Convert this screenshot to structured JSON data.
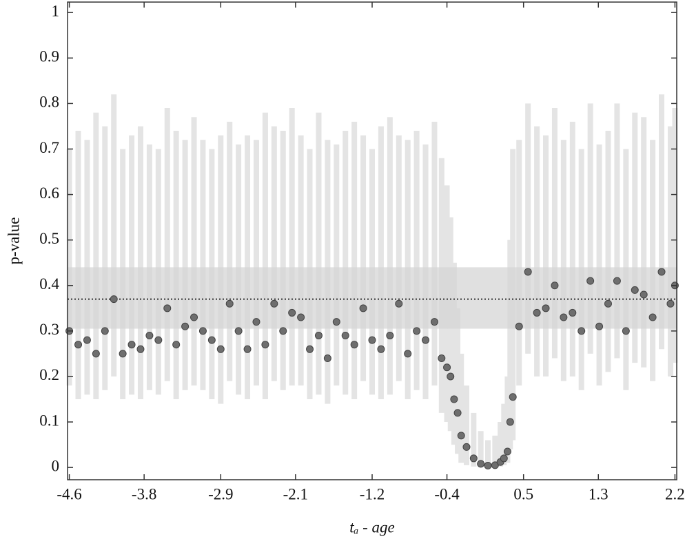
{
  "chart_data": {
    "type": "scatter",
    "xlabel": "tₐ  - age",
    "ylabel": "p-value",
    "xlim": [
      -4.62,
      2.22
    ],
    "ylim": [
      -0.027,
      1.023
    ],
    "xticks": [
      -4.6,
      {
        "value": -3.76,
        "label": "-3.8"
      },
      -2.9,
      {
        "value": -2.06,
        "label": "-2.1"
      },
      -1.2,
      {
        "value": -0.36,
        "label": "-0.4"
      },
      0.5,
      {
        "value": 1.34,
        "label": "1.3"
      },
      2.2
    ],
    "yticks": [
      0,
      0.1,
      0.2,
      0.3,
      0.4,
      0.5,
      0.6,
      0.7,
      0.8,
      0.9,
      1
    ],
    "band": [
      0.305,
      0.44
    ],
    "reference_line": 0.37,
    "color": "#6e6e6e",
    "error_color": "#e4e4e4",
    "band_color": "#d6d6d6",
    "series": [
      {
        "x": [
          -4.6,
          -4.5,
          -4.4,
          -4.3,
          -4.2,
          -4.1,
          -4.0,
          -3.9,
          -3.8,
          -3.7,
          -3.6,
          -3.5,
          -3.4,
          -3.3,
          -3.2,
          -3.1,
          -3.0,
          -2.9,
          -2.8,
          -2.7,
          -2.6,
          -2.5,
          -2.4,
          -2.3,
          -2.2,
          -2.1,
          -2.0,
          -1.9,
          -1.8,
          -1.7,
          -1.6,
          -1.5,
          -1.4,
          -1.3,
          -1.2,
          -1.1,
          -1.0,
          -0.9,
          -0.8,
          -0.7,
          -0.6,
          -0.5,
          -0.42,
          -0.36,
          -0.32,
          -0.28,
          -0.24,
          -0.2,
          -0.14,
          -0.06,
          0.02,
          0.1,
          0.18,
          0.24,
          0.28,
          0.32,
          0.35,
          0.38,
          0.45,
          0.55,
          0.65,
          0.75,
          0.85,
          0.95,
          1.05,
          1.15,
          1.25,
          1.35,
          1.45,
          1.55,
          1.65,
          1.75,
          1.85,
          1.95,
          2.05,
          2.15,
          2.2
        ],
        "values": [
          0.3,
          0.27,
          0.28,
          0.25,
          0.3,
          0.37,
          0.25,
          0.27,
          0.26,
          0.29,
          0.28,
          0.35,
          0.27,
          0.31,
          0.33,
          0.3,
          0.28,
          0.26,
          0.36,
          0.3,
          0.26,
          0.32,
          0.27,
          0.36,
          0.3,
          0.34,
          0.33,
          0.26,
          0.29,
          0.24,
          0.32,
          0.29,
          0.27,
          0.35,
          0.28,
          0.26,
          0.29,
          0.36,
          0.25,
          0.3,
          0.28,
          0.32,
          0.24,
          0.22,
          0.2,
          0.15,
          0.12,
          0.07,
          0.045,
          0.02,
          0.008,
          0.004,
          0.005,
          0.012,
          0.02,
          0.035,
          0.1,
          0.155,
          0.31,
          0.43,
          0.34,
          0.35,
          0.4,
          0.33,
          0.34,
          0.3,
          0.41,
          0.31,
          0.36,
          0.41,
          0.3,
          0.39,
          0.38,
          0.33,
          0.43,
          0.36,
          0.4
        ],
        "lower": [
          0.18,
          0.15,
          0.16,
          0.15,
          0.17,
          0.2,
          0.15,
          0.16,
          0.15,
          0.17,
          0.16,
          0.19,
          0.15,
          0.17,
          0.18,
          0.17,
          0.15,
          0.14,
          0.19,
          0.16,
          0.15,
          0.18,
          0.15,
          0.19,
          0.17,
          0.18,
          0.18,
          0.15,
          0.16,
          0.14,
          0.18,
          0.16,
          0.15,
          0.19,
          0.16,
          0.15,
          0.16,
          0.19,
          0.15,
          0.17,
          0.15,
          0.18,
          0.12,
          0.1,
          0.08,
          0.05,
          0.03,
          0.01,
          0.005,
          0.002,
          0.001,
          0.0,
          0.0,
          0.002,
          0.005,
          0.01,
          0.04,
          0.06,
          0.18,
          0.25,
          0.2,
          0.2,
          0.24,
          0.19,
          0.2,
          0.17,
          0.25,
          0.18,
          0.21,
          0.24,
          0.17,
          0.23,
          0.22,
          0.19,
          0.26,
          0.2,
          0.23
        ],
        "upper": [
          0.7,
          0.74,
          0.72,
          0.78,
          0.75,
          0.82,
          0.7,
          0.73,
          0.75,
          0.71,
          0.7,
          0.79,
          0.74,
          0.72,
          0.77,
          0.72,
          0.7,
          0.73,
          0.76,
          0.71,
          0.73,
          0.72,
          0.78,
          0.75,
          0.74,
          0.79,
          0.73,
          0.7,
          0.78,
          0.72,
          0.71,
          0.74,
          0.76,
          0.73,
          0.7,
          0.75,
          0.77,
          0.73,
          0.72,
          0.74,
          0.71,
          0.76,
          0.68,
          0.62,
          0.55,
          0.45,
          0.35,
          0.25,
          0.18,
          0.12,
          0.08,
          0.06,
          0.07,
          0.1,
          0.14,
          0.2,
          0.5,
          0.7,
          0.72,
          0.8,
          0.75,
          0.73,
          0.79,
          0.72,
          0.76,
          0.7,
          0.8,
          0.71,
          0.74,
          0.8,
          0.7,
          0.78,
          0.77,
          0.72,
          0.82,
          0.75,
          0.79
        ]
      }
    ]
  }
}
